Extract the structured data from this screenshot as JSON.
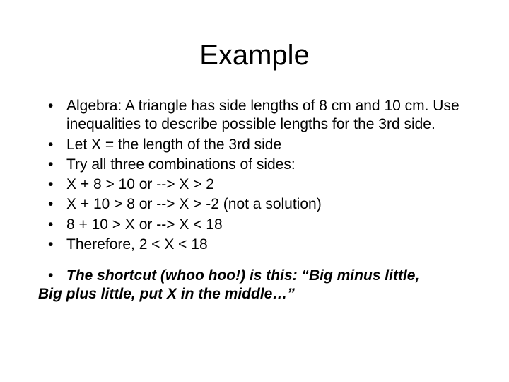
{
  "slide": {
    "title": "Example",
    "title_fontsize": 40,
    "body_fontsize": 21,
    "background_color": "#ffffff",
    "text_color": "#000000",
    "font_family": "Arial",
    "bullets": [
      "Algebra: A triangle has side lengths of 8 cm and 10 cm. Use inequalities to describe possible lengths for the 3rd side.",
      "Let X = the length of the 3rd side",
      "Try all three combinations of sides:",
      "X + 8 > 10 or --> X > 2",
      "X + 10 > 8 or --> X > -2 (not a solution)",
      "8 + 10 > X or --> X < 18",
      "Therefore, 2 < X < 18"
    ],
    "footer": {
      "line1": "The shortcut (whoo hoo!) is this: “Big minus little,",
      "line2": "Big plus little, put X in the middle…”",
      "bold": true,
      "italic": true
    }
  }
}
